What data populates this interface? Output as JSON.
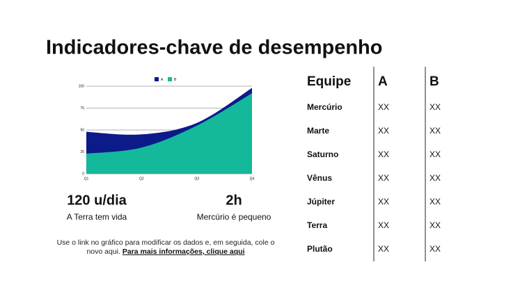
{
  "title": "Indicadores-chave de desempenho",
  "chart_data": {
    "type": "area",
    "categories": [
      "Q1",
      "Q2",
      "Q3",
      "Q4"
    ],
    "series": [
      {
        "name": "A",
        "color": "#0c1a8a",
        "values": [
          48,
          45,
          58,
          98
        ]
      },
      {
        "name": "B",
        "color": "#14b89b",
        "values": [
          23,
          30,
          55,
          92
        ]
      }
    ],
    "ylim": [
      0,
      100
    ],
    "yticks": [
      0,
      25,
      50,
      75,
      100
    ],
    "grid": true,
    "legend": "top"
  },
  "kpis": [
    {
      "value": "120 u/dia",
      "label": "A Terra tem vida"
    },
    {
      "value": "2h",
      "label": "Mercúrio é pequeno"
    }
  ],
  "note": {
    "text": "Use o link no gráfico para modificar os dados e, em seguida, cole o novo aqui.",
    "link": "Para mais informações, clique aqui"
  },
  "table": {
    "header": [
      "Equipe",
      "A",
      "B"
    ],
    "rows": [
      [
        "Mercúrio",
        "XX",
        "XX"
      ],
      [
        "Marte",
        "XX",
        "XX"
      ],
      [
        "Saturno",
        "XX",
        "XX"
      ],
      [
        "Vênus",
        "XX",
        "XX"
      ],
      [
        "Júpiter",
        "XX",
        "XX"
      ],
      [
        "Terra",
        "XX",
        "XX"
      ],
      [
        "Plutão",
        "XX",
        "XX"
      ]
    ]
  }
}
